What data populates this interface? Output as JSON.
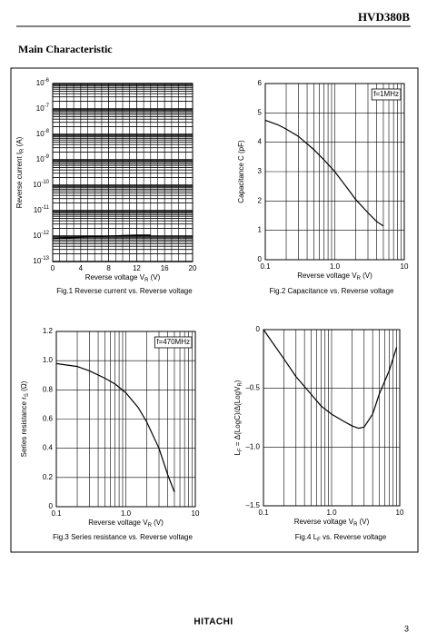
{
  "header": {
    "code": "HVD380B",
    "section": "Main Characteristic"
  },
  "chart_data": [
    {
      "type": "line",
      "xscale": "linear",
      "yscale": "log",
      "grid": true,
      "ylabel": [
        "Reverse current  I",
        "R",
        "  (A)"
      ],
      "xlabel": [
        "Reverse voltage  V",
        "R",
        "  (V)"
      ],
      "caption": [
        "Fig.1   Reverse current vs. Reverse voltage"
      ],
      "x": [
        0,
        2,
        4,
        6,
        8,
        10,
        12,
        14
      ],
      "series": [
        {
          "color": "#000000",
          "values": [
            8e-13,
            8.5e-13,
            9e-13,
            9.5e-13,
            1e-12,
            1.05e-12,
            1.1e-12,
            1.1e-12
          ]
        }
      ],
      "xlim": [
        0,
        20
      ],
      "xticks": [
        0,
        4,
        8,
        12,
        16,
        20
      ],
      "ylim": [
        1e-13,
        1e-06
      ],
      "yticks": [
        {
          "value": 1e-13,
          "label": "10",
          "sup": "-13"
        },
        {
          "value": 1e-12,
          "label": "10",
          "sup": "-12"
        },
        {
          "value": 1e-11,
          "label": "10",
          "sup": "-11"
        },
        {
          "value": 1e-10,
          "label": "10",
          "sup": "-10"
        },
        {
          "value": 1e-09,
          "label": "10",
          "sup": "-9"
        },
        {
          "value": 1e-08,
          "label": "10",
          "sup": "-8"
        },
        {
          "value": 1e-07,
          "label": "10",
          "sup": "-7"
        },
        {
          "value": 1e-06,
          "label": "10",
          "sup": "-6"
        }
      ]
    },
    {
      "type": "line",
      "xscale": "log",
      "yscale": "linear",
      "grid": true,
      "ylabel": [
        "Capacitance  C  (pF)"
      ],
      "xlabel": [
        "Reverse voltage  V",
        "R",
        "  (V)"
      ],
      "caption": [
        "Fig.2   Capacitance vs. Reverse voltage"
      ],
      "annotation": "f=1MHz",
      "x": [
        0.1,
        0.15,
        0.2,
        0.3,
        0.5,
        0.7,
        1.0,
        1.5,
        2,
        3,
        4,
        5
      ],
      "series": [
        {
          "color": "#000000",
          "values": [
            4.75,
            4.6,
            4.45,
            4.2,
            3.75,
            3.4,
            3.0,
            2.45,
            2.05,
            1.6,
            1.3,
            1.15
          ]
        }
      ],
      "xlim": [
        0.1,
        10
      ],
      "xticks": [
        0.1,
        {
          "value": 1,
          "label": "1.0"
        },
        10
      ],
      "ylim": [
        0,
        6
      ],
      "yticks": [
        0,
        1,
        2,
        3,
        4,
        5,
        6
      ]
    },
    {
      "type": "line",
      "xscale": "log",
      "yscale": "linear",
      "grid": true,
      "ylabel": [
        "Series resistance  r",
        "S",
        "  (Ω)"
      ],
      "xlabel": [
        "Reverse voltage  V",
        "R",
        "  (V)"
      ],
      "caption": [
        "Fig.3   Series resistance vs. Reverse voltage"
      ],
      "annotation": "f=470MHz",
      "x": [
        0.1,
        0.2,
        0.3,
        0.5,
        0.7,
        1.0,
        1.5,
        2,
        3,
        4,
        5
      ],
      "series": [
        {
          "color": "#000000",
          "values": [
            0.98,
            0.96,
            0.93,
            0.88,
            0.84,
            0.78,
            0.68,
            0.58,
            0.4,
            0.22,
            0.1
          ]
        }
      ],
      "xlim": [
        0.1,
        10
      ],
      "xticks": [
        0.1,
        {
          "value": 1,
          "label": "1.0"
        },
        10
      ],
      "ylim": [
        0,
        1.2
      ],
      "yticks": [
        0,
        0.2,
        0.4,
        0.6,
        0.8,
        {
          "value": 1,
          "label": "1.0"
        },
        1.2
      ]
    },
    {
      "type": "line",
      "xscale": "log",
      "yscale": "linear",
      "grid": true,
      "ylabel": [
        "L",
        "F",
        " = Δ(LogC)/Δ(LogV",
        "R",
        ")"
      ],
      "xlabel": [
        "Reverse voltage  V",
        "R",
        "  (V)"
      ],
      "caption": [
        "Fig.4   L",
        "F",
        " vs. Reverse voltage"
      ],
      "x": [
        0.1,
        0.2,
        0.3,
        0.5,
        0.7,
        1.0,
        1.5,
        2,
        2.5,
        3,
        4,
        5,
        7,
        9
      ],
      "series": [
        {
          "color": "#000000",
          "values": [
            0,
            -0.25,
            -0.4,
            -0.55,
            -0.65,
            -0.72,
            -0.78,
            -0.82,
            -0.84,
            -0.83,
            -0.72,
            -0.55,
            -0.35,
            -0.15
          ]
        }
      ],
      "xlim": [
        0.1,
        10
      ],
      "xticks": [
        0.1,
        {
          "value": 1,
          "label": "1.0"
        },
        10
      ],
      "ylim": [
        -1.5,
        0
      ],
      "yticks": [
        {
          "value": -1.5,
          "label": "–1.5"
        },
        {
          "value": -1,
          "label": "–1.0"
        },
        {
          "value": -0.5,
          "label": "–0.5"
        },
        0
      ]
    }
  ],
  "footer": {
    "brand": "HITACHI",
    "page": "3"
  }
}
